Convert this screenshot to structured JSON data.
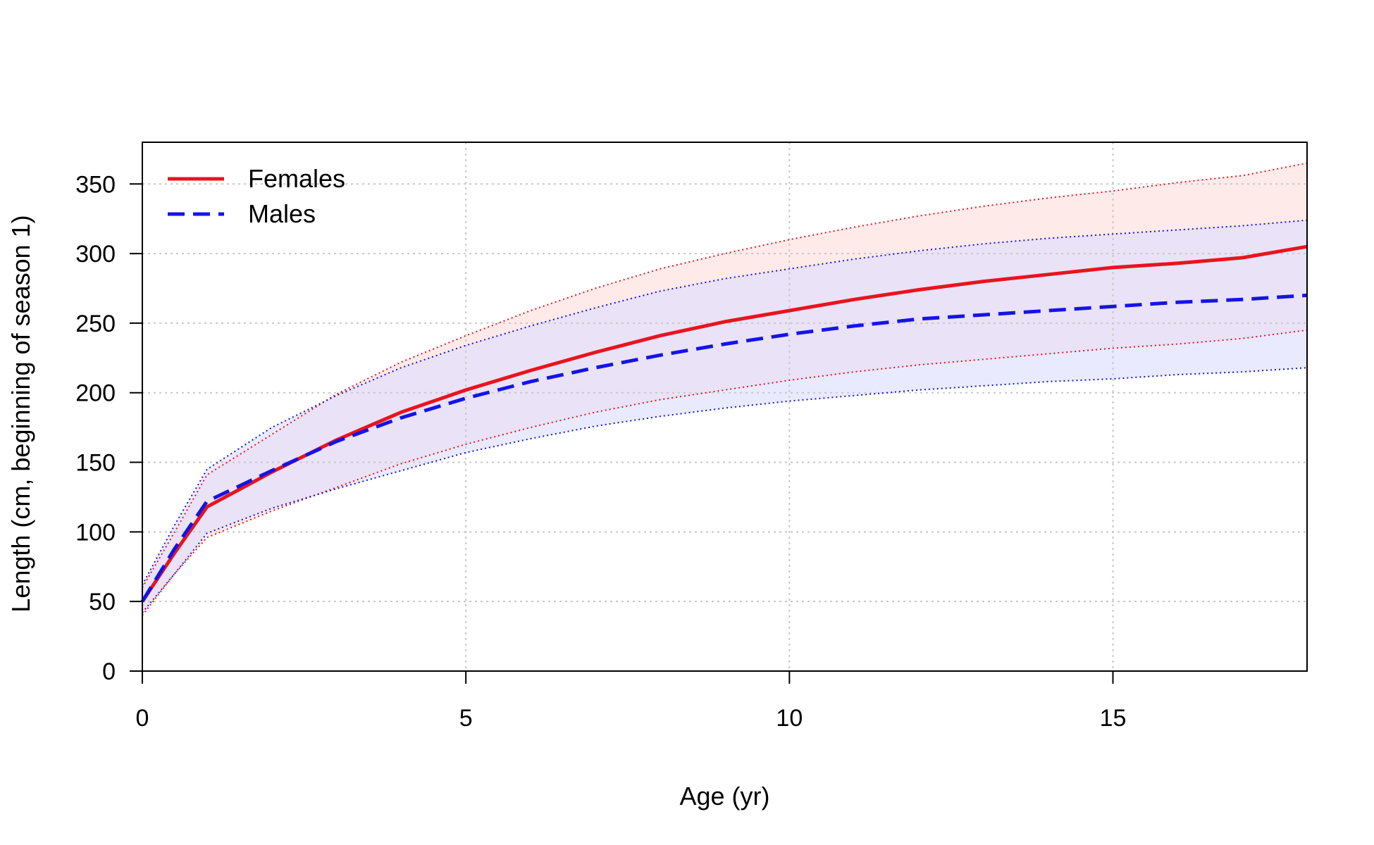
{
  "chart_data": {
    "type": "line",
    "xlabel": "Age (yr)",
    "ylabel": "Length (cm, beginning of season 1)",
    "xlim": [
      0,
      18
    ],
    "ylim": [
      0,
      380
    ],
    "x_ticks": [
      0,
      5,
      10,
      15
    ],
    "y_ticks": [
      0,
      50,
      100,
      150,
      200,
      250,
      300,
      350
    ],
    "grid": true,
    "legend_position": "top-left",
    "series": [
      {
        "name": "Females",
        "color": "#e8141e",
        "line_style": "solid",
        "x": [
          0,
          0.5,
          1,
          2,
          3,
          4,
          5,
          6,
          7,
          8,
          9,
          10,
          11,
          12,
          13,
          14,
          15,
          16,
          17,
          18
        ],
        "values": [
          50,
          85,
          118,
          143,
          166,
          186,
          202,
          216,
          229,
          241,
          251,
          259,
          267,
          274,
          280,
          285,
          290,
          293,
          297,
          305
        ],
        "upper": [
          60,
          100,
          141,
          170,
          199,
          222,
          241,
          259,
          275,
          289,
          300,
          310,
          319,
          327,
          334,
          340,
          345,
          351,
          356,
          365
        ],
        "lower": [
          40,
          70,
          96,
          115,
          132,
          149,
          163,
          175,
          186,
          195,
          202,
          209,
          215,
          220,
          224,
          228,
          232,
          235,
          239,
          245
        ],
        "band_color": "#ffdcdc"
      },
      {
        "name": "Males",
        "color": "#1414e6",
        "line_style": "dashed",
        "x": [
          0,
          0.5,
          1,
          2,
          3,
          4,
          5,
          6,
          7,
          8,
          9,
          10,
          11,
          12,
          13,
          14,
          15,
          16,
          17,
          18
        ],
        "values": [
          50,
          88,
          122,
          144,
          165,
          182,
          196,
          208,
          218,
          227,
          235,
          242,
          248,
          253,
          256,
          259,
          262,
          265,
          267,
          270
        ],
        "upper": [
          62,
          105,
          145,
          175,
          198,
          218,
          234,
          248,
          261,
          273,
          282,
          289,
          296,
          302,
          307,
          311,
          314,
          317,
          320,
          324
        ],
        "lower": [
          42,
          70,
          99,
          117,
          131,
          144,
          157,
          167,
          176,
          183,
          189,
          194,
          198,
          202,
          205,
          208,
          210,
          213,
          215,
          218
        ],
        "band_color": "#dcdcff"
      }
    ],
    "overlap_color": "#e4cce4"
  }
}
